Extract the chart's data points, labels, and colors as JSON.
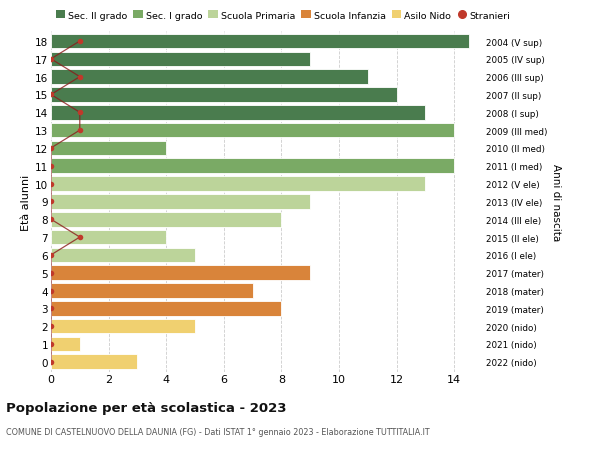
{
  "ages": [
    18,
    17,
    16,
    15,
    14,
    13,
    12,
    11,
    10,
    9,
    8,
    7,
    6,
    5,
    4,
    3,
    2,
    1,
    0
  ],
  "labels_right": [
    "2004 (V sup)",
    "2005 (IV sup)",
    "2006 (III sup)",
    "2007 (II sup)",
    "2008 (I sup)",
    "2009 (III med)",
    "2010 (II med)",
    "2011 (I med)",
    "2012 (V ele)",
    "2013 (IV ele)",
    "2014 (III ele)",
    "2015 (II ele)",
    "2016 (I ele)",
    "2017 (mater)",
    "2018 (mater)",
    "2019 (mater)",
    "2020 (nido)",
    "2021 (nido)",
    "2022 (nido)"
  ],
  "bar_values": [
    14.5,
    9.0,
    11.0,
    12.0,
    13.0,
    14.0,
    4.0,
    14.0,
    13.0,
    9.0,
    8.0,
    4.0,
    5.0,
    9.0,
    7.0,
    8.0,
    5.0,
    1.0,
    3.0
  ],
  "bar_colors": [
    "#4a7c4e",
    "#4a7c4e",
    "#4a7c4e",
    "#4a7c4e",
    "#4a7c4e",
    "#7aaa65",
    "#7aaa65",
    "#7aaa65",
    "#bcd49a",
    "#bcd49a",
    "#bcd49a",
    "#bcd49a",
    "#bcd49a",
    "#d9843a",
    "#d9843a",
    "#d9843a",
    "#f0d070",
    "#f0d070",
    "#f0d070"
  ],
  "stranieri_y": [
    18,
    17,
    16,
    15,
    14,
    13,
    12,
    11,
    10,
    9,
    8,
    7,
    6,
    5,
    4,
    3,
    2,
    1,
    0
  ],
  "stranieri_x": [
    1.0,
    0.0,
    1.0,
    0.0,
    1.0,
    1.0,
    0.0,
    0.0,
    0.0,
    0.0,
    0.0,
    1.0,
    0.0,
    0.0,
    0.0,
    0.0,
    0.0,
    0.0,
    0.0
  ],
  "legend_labels": [
    "Sec. II grado",
    "Sec. I grado",
    "Scuola Primaria",
    "Scuola Infanzia",
    "Asilo Nido",
    "Stranieri"
  ],
  "legend_colors": [
    "#4a7c4e",
    "#7aaa65",
    "#bcd49a",
    "#d9843a",
    "#f0d070",
    "#c0392b"
  ],
  "title": "Popolazione per età scolastica - 2023",
  "subtitle": "COMUNE DI CASTELNUOVO DELLA DAUNIA (FG) - Dati ISTAT 1° gennaio 2023 - Elaborazione TUTTITALIA.IT",
  "ylabel_left": "Età alunni",
  "ylabel_right": "Anni di nascita",
  "xlim": [
    0,
    15
  ],
  "ylim": [
    -0.55,
    18.55
  ],
  "xticks": [
    0,
    2,
    4,
    6,
    8,
    10,
    12,
    14
  ],
  "bg_color": "#ffffff",
  "plot_bg_color": "#ffffff",
  "grid_color": "#cccccc"
}
